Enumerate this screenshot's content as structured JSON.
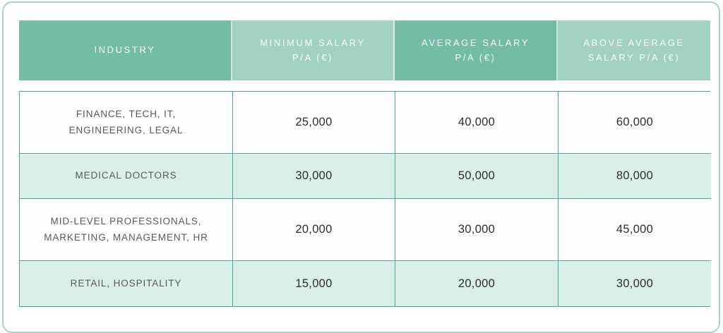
{
  "chart_data": {
    "type": "table",
    "title": "",
    "columns": [
      "INDUSTRY",
      "MINIMUM SALARY P/A (€)",
      "AVERAGE SALARY P/A (€)",
      "ABOVE AVERAGE SALARY P/A (€)"
    ],
    "rows": [
      {
        "industry": "FINANCE, TECH, IT, ENGINEERING, LEGAL",
        "min": "25,000",
        "avg": "40,000",
        "above": "60,000"
      },
      {
        "industry": "MEDICAL DOCTORS",
        "min": "30,000",
        "avg": "50,000",
        "above": "80,000"
      },
      {
        "industry": "MID-LEVEL PROFESSIONALS, MARKETING, MANAGEMENT, HR",
        "min": "20,000",
        "avg": "30,000",
        "above": "45,000"
      },
      {
        "industry": "RETAIL, HOSPITALITY",
        "min": "15,000",
        "avg": "20,000",
        "above": "30,000"
      }
    ]
  },
  "colors": {
    "header_dark": "#74bca5",
    "header_light": "#a2d1c2",
    "row_mint": "#d9f0e8",
    "row_white": "#fefefe",
    "table_border": "#55a09d",
    "card_border": "#a7d4cd",
    "header_text": "#f6fbf9",
    "industry_text": "#595959",
    "value_text": "#2d2d2d"
  }
}
